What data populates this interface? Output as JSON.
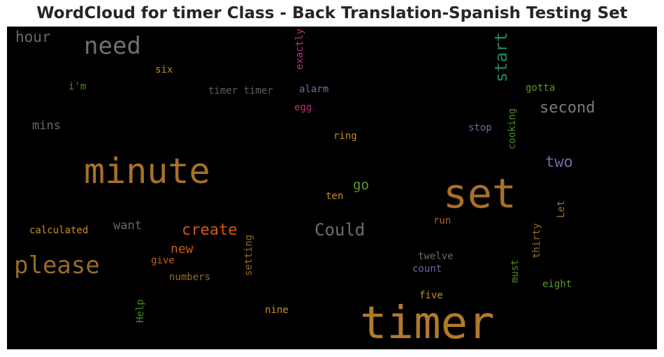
{
  "chart_data": {
    "type": "wordcloud",
    "title": "WordCloud for timer Class - Back Translation-Spanish Testing Set",
    "background": "#000000",
    "words": [
      {
        "text": "timer",
        "color": "#b07a2a",
        "rotated": false
      },
      {
        "text": "minute",
        "color": "#a87028",
        "rotated": false
      },
      {
        "text": "set",
        "color": "#a87028",
        "rotated": false
      },
      {
        "text": "please",
        "color": "#9a6a2c",
        "rotated": false
      },
      {
        "text": "need",
        "color": "#707070",
        "rotated": false
      },
      {
        "text": "Could",
        "color": "#6e6e6e",
        "rotated": false
      },
      {
        "text": "start",
        "color": "#1e8a64",
        "rotated": true
      },
      {
        "text": "second",
        "color": "#7a7a7a",
        "rotated": false
      },
      {
        "text": "create",
        "color": "#d05a10",
        "rotated": false
      },
      {
        "text": "two",
        "color": "#6e6aa8",
        "rotated": false
      },
      {
        "text": "hour",
        "color": "#6a6a6a",
        "rotated": false
      },
      {
        "text": "go",
        "color": "#5c9a28",
        "rotated": false
      },
      {
        "text": "new",
        "color": "#c85a12",
        "rotated": false
      },
      {
        "text": "want",
        "color": "#6a6a6a",
        "rotated": false
      },
      {
        "text": "mins",
        "color": "#6a6a6a",
        "rotated": false
      },
      {
        "text": "timer timer",
        "color": "#5e5e5e",
        "rotated": false
      },
      {
        "text": "exactly",
        "color": "#c0307a",
        "rotated": true
      },
      {
        "text": "six",
        "color": "#c08a20",
        "rotated": false
      },
      {
        "text": "i'm",
        "color": "#4c8a22",
        "rotated": false
      },
      {
        "text": "alarm",
        "color": "#6a6aa6",
        "rotated": false
      },
      {
        "text": "egg",
        "color": "#c8287a",
        "rotated": false
      },
      {
        "text": "gotta",
        "color": "#5c9a28",
        "rotated": false
      },
      {
        "text": "ring",
        "color": "#c08a20",
        "rotated": false
      },
      {
        "text": "stop",
        "color": "#6a6aa6",
        "rotated": false
      },
      {
        "text": "cooking",
        "color": "#4c8a22",
        "rotated": true
      },
      {
        "text": "ten",
        "color": "#c8901e",
        "rotated": false
      },
      {
        "text": "Let",
        "color": "#a0702c",
        "rotated": true
      },
      {
        "text": "calculated",
        "color": "#c8901e",
        "rotated": false
      },
      {
        "text": "run",
        "color": "#9a6a2c",
        "rotated": false
      },
      {
        "text": "thirty",
        "color": "#9a6a2c",
        "rotated": true
      },
      {
        "text": "setting",
        "color": "#9a6a2c",
        "rotated": true
      },
      {
        "text": "give",
        "color": "#c85a12",
        "rotated": false
      },
      {
        "text": "twelve",
        "color": "#6a6a6a",
        "rotated": false
      },
      {
        "text": "count",
        "color": "#6a6aa6",
        "rotated": false
      },
      {
        "text": "must",
        "color": "#4c8a22",
        "rotated": true
      },
      {
        "text": "numbers",
        "color": "#9a6a2c",
        "rotated": false
      },
      {
        "text": "eight",
        "color": "#5c9a28",
        "rotated": false
      },
      {
        "text": "five",
        "color": "#c8901e",
        "rotated": false
      },
      {
        "text": "Help",
        "color": "#4c8a22",
        "rotated": true
      },
      {
        "text": "nine",
        "color": "#c8901e",
        "rotated": false
      }
    ]
  }
}
